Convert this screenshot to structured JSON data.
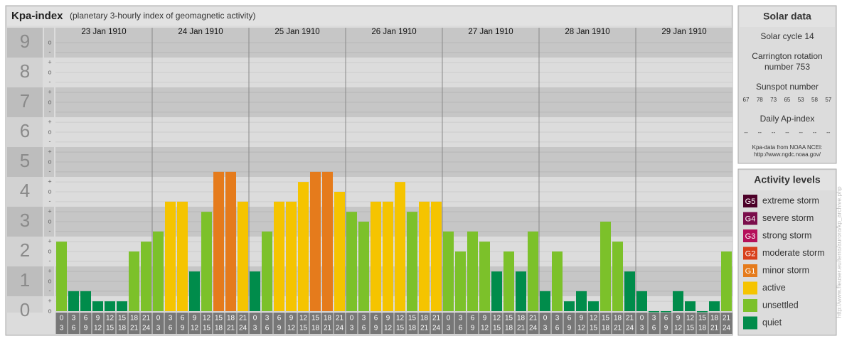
{
  "chart_data": {
    "type": "bar",
    "title": "Kpa-index",
    "subtitle": "(planetary 3-hourly index of geomagnetic activity)",
    "categories": [
      "23 Jan 1910",
      "24 Jan 1910",
      "25 Jan 1910",
      "26 Jan 1910",
      "27 Jan 1910",
      "28 Jan 1910",
      "29 Jan 1910"
    ],
    "hours_start": [
      "0",
      "3",
      "6",
      "9",
      "12",
      "15",
      "18",
      "21"
    ],
    "hours_end": [
      "3",
      "6",
      "9",
      "12",
      "15",
      "18",
      "21",
      "24"
    ],
    "values": [
      [
        2.33,
        0.67,
        0.67,
        0.33,
        0.33,
        0.33,
        2,
        2.33
      ],
      [
        2.67,
        3.67,
        3.67,
        1.33,
        3.33,
        4.67,
        4.67,
        3.67
      ],
      [
        1.33,
        2.67,
        3.67,
        3.67,
        4.33,
        4.67,
        4.67,
        4
      ],
      [
        3.33,
        3,
        3.67,
        3.67,
        4.33,
        3.33,
        3.67,
        3.67
      ],
      [
        2.67,
        2,
        2.67,
        2.33,
        1.33,
        2,
        1.33,
        2.67
      ],
      [
        0.67,
        2,
        0.33,
        0.67,
        0.33,
        3,
        2.33,
        1.33
      ],
      [
        0.67,
        0,
        0,
        0.67,
        0.33,
        0,
        0.33,
        2
      ]
    ],
    "colors": [
      [
        "#7cc12a",
        "#008c4b",
        "#008c4b",
        "#008c4b",
        "#008c4b",
        "#008c4b",
        "#7cc12a",
        "#7cc12a"
      ],
      [
        "#7cc12a",
        "#f5c400",
        "#f5c400",
        "#008c4b",
        "#7cc12a",
        "#e57b1c",
        "#e57b1c",
        "#f5c400"
      ],
      [
        "#008c4b",
        "#7cc12a",
        "#f5c400",
        "#f5c400",
        "#f5c400",
        "#e57b1c",
        "#e57b1c",
        "#f5c400"
      ],
      [
        "#7cc12a",
        "#7cc12a",
        "#f5c400",
        "#f5c400",
        "#f5c400",
        "#7cc12a",
        "#f5c400",
        "#f5c400"
      ],
      [
        "#7cc12a",
        "#7cc12a",
        "#7cc12a",
        "#7cc12a",
        "#008c4b",
        "#7cc12a",
        "#008c4b",
        "#7cc12a"
      ],
      [
        "#008c4b",
        "#7cc12a",
        "#008c4b",
        "#008c4b",
        "#008c4b",
        "#7cc12a",
        "#7cc12a",
        "#008c4b"
      ],
      [
        "#008c4b",
        "#008c4b",
        "#008c4b",
        "#008c4b",
        "#008c4b",
        "#008c4b",
        "#008c4b",
        "#7cc12a"
      ]
    ],
    "ylim": [
      0,
      9.5
    ],
    "yticks": [
      0,
      1,
      2,
      3,
      4,
      5,
      6,
      7,
      8,
      9
    ],
    "minor_yticks": [
      {
        "value": 0,
        "label": "o"
      },
      {
        "value": 0.33,
        "label": "+"
      },
      {
        "value": 0.67,
        "label": "-"
      },
      {
        "value": 1,
        "label": "o"
      },
      {
        "value": 1.33,
        "label": "+"
      },
      {
        "value": 1.67,
        "label": "-"
      },
      {
        "value": 2,
        "label": "o"
      },
      {
        "value": 2.33,
        "label": "+"
      },
      {
        "value": 2.67,
        "label": "-"
      },
      {
        "value": 3,
        "label": "o"
      },
      {
        "value": 3.33,
        "label": "+"
      },
      {
        "value": 3.67,
        "label": "-"
      },
      {
        "value": 4,
        "label": "o"
      },
      {
        "value": 4.33,
        "label": "+"
      },
      {
        "value": 4.67,
        "label": "-"
      },
      {
        "value": 5,
        "label": "o"
      },
      {
        "value": 5.33,
        "label": "+"
      },
      {
        "value": 5.67,
        "label": "-"
      },
      {
        "value": 6,
        "label": "o"
      },
      {
        "value": 6.33,
        "label": "+"
      },
      {
        "value": 6.67,
        "label": "-"
      },
      {
        "value": 7,
        "label": "o"
      },
      {
        "value": 7.33,
        "label": "+"
      },
      {
        "value": 7.67,
        "label": "-"
      },
      {
        "value": 8,
        "label": "o"
      },
      {
        "value": 8.33,
        "label": "+"
      },
      {
        "value": 8.67,
        "label": "-"
      },
      {
        "value": 9,
        "label": "o"
      }
    ],
    "grid": true
  },
  "solar_data": {
    "title": "Solar data",
    "solar_cycle": "Solar cycle 14",
    "carrington": [
      "Carrington rotation",
      "number 753"
    ],
    "sunspot_title": "Sunspot number",
    "sunspots": [
      67,
      78,
      73,
      65,
      53,
      58,
      57
    ],
    "ap_title": "Daily Ap-index",
    "ap": [
      "--",
      "--",
      "--",
      "--",
      "--",
      "--",
      "--"
    ],
    "source": [
      "Kpa-data from NOAA NCEI:",
      "http://www.ngdc.noaa.gov/"
    ]
  },
  "activity_levels": {
    "title": "Activity levels",
    "items": [
      {
        "badge": "G5",
        "label": "extreme storm",
        "color": "#4c0028"
      },
      {
        "badge": "G4",
        "label": "severe storm",
        "color": "#7a0d4b"
      },
      {
        "badge": "G3",
        "label": "strong storm",
        "color": "#b5105a"
      },
      {
        "badge": "G2",
        "label": "moderate storm",
        "color": "#d8401c"
      },
      {
        "badge": "G1",
        "label": "minor storm",
        "color": "#e57b1c"
      },
      {
        "label": "active",
        "color": "#f5c400"
      },
      {
        "label": "unsettled",
        "color": "#7cc12a"
      },
      {
        "label": "quiet",
        "color": "#008c4b"
      }
    ]
  },
  "credit": "http://www.fleuser.eu/terra/aurora/kp_archive.php"
}
